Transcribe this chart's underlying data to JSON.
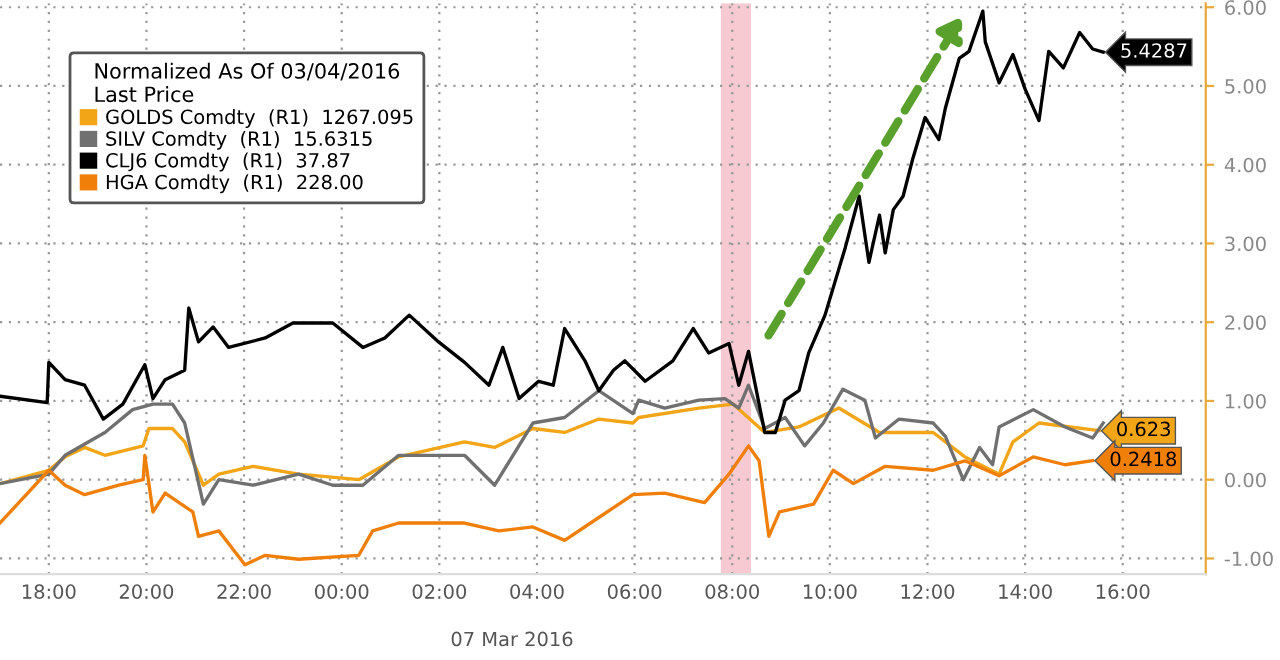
{
  "chart_data": {
    "type": "line",
    "legend_title": "Normalized As Of 03/04/2016\nLast Price",
    "annotations": [
      "07 Mar 2016"
    ],
    "xlim": [
      "2016-03-06T17:00",
      "2016-03-07T17:42"
    ],
    "xticks": [
      {
        "value": "2016-03-06T18:00",
        "label": "18:00"
      },
      {
        "value": "2016-03-06T20:00",
        "label": "20:00"
      },
      {
        "value": "2016-03-06T22:00",
        "label": "22:00"
      },
      {
        "value": "2016-03-07T00:00",
        "label": "00:00"
      },
      {
        "value": "2016-03-07T02:00",
        "label": "02:00"
      },
      {
        "value": "2016-03-07T04:00",
        "label": "04:00"
      },
      {
        "value": "2016-03-07T06:00",
        "label": "06:00"
      },
      {
        "value": "2016-03-07T08:00",
        "label": "08:00"
      },
      {
        "value": "2016-03-07T10:00",
        "label": "10:00"
      },
      {
        "value": "2016-03-07T12:00",
        "label": "12:00"
      },
      {
        "value": "2016-03-07T14:00",
        "label": "14:00"
      },
      {
        "value": "2016-03-07T16:00",
        "label": "16:00"
      }
    ],
    "ylim": [
      -1.2,
      6.05
    ],
    "yticks": [
      {
        "value": -1,
        "label": "-1.00"
      },
      {
        "value": 0,
        "label": "0.00"
      },
      {
        "value": 1,
        "label": "1.00"
      },
      {
        "value": 2,
        "label": "2.00"
      },
      {
        "value": 3,
        "label": "3.00"
      },
      {
        "value": 4,
        "label": "4.00"
      },
      {
        "value": 5,
        "label": "5.00"
      },
      {
        "value": 6,
        "label": "6.00"
      }
    ],
    "grid": true,
    "legend": "top left",
    "bands": [
      {
        "axis": "x",
        "from": "2016-03-07T07:46",
        "to": "2016-03-07T08:23",
        "color": "#f5c4cb"
      }
    ],
    "series": [
      {
        "name": "GOLDS Comdty  (R1)  1267.095",
        "color": "#f2a516",
        "x": [
          "2016-03-06T17:00",
          "2016-03-06T18:00",
          "2016-03-06T18:20",
          "2016-03-06T18:44",
          "2016-03-06T19:09",
          "2016-03-06T19:56",
          "2016-03-06T20:03",
          "2016-03-06T20:32",
          "2016-03-06T20:47",
          "2016-03-06T21:10",
          "2016-03-06T21:29",
          "2016-03-06T22:11",
          "2016-03-06T23:07",
          "2016-03-07T00:21",
          "2016-03-07T01:10",
          "2016-03-07T02:31",
          "2016-03-07T03:08",
          "2016-03-07T03:55",
          "2016-03-07T04:34",
          "2016-03-07T05:16",
          "2016-03-07T05:58",
          "2016-03-07T06:05",
          "2016-03-07T07:19",
          "2016-03-07T08:01",
          "2016-03-07T08:40",
          "2016-03-07T09:22",
          "2016-03-07T10:11",
          "2016-03-07T11:01",
          "2016-03-07T12:07",
          "2016-03-07T12:46",
          "2016-03-07T13:28",
          "2016-03-07T13:45",
          "2016-03-07T14:17",
          "2016-03-07T15:31"
        ],
        "values": [
          -0.05,
          0.12,
          0.29,
          0.41,
          0.31,
          0.43,
          0.65,
          0.65,
          0.48,
          -0.07,
          0.07,
          0.17,
          0.07,
          0.0,
          0.29,
          0.48,
          0.41,
          0.65,
          0.6,
          0.77,
          0.72,
          0.79,
          0.91,
          0.96,
          0.6,
          0.67,
          0.91,
          0.6,
          0.6,
          0.29,
          0.07,
          0.48,
          0.72,
          0.623
        ],
        "value_labels": [
          null,
          null,
          null,
          null,
          null,
          null,
          null,
          null,
          null,
          null,
          null,
          null,
          null,
          null,
          null,
          null,
          null,
          null,
          null,
          null,
          null,
          null,
          null,
          null,
          null,
          null,
          null,
          null,
          null,
          null,
          null,
          null,
          null,
          "0.623"
        ]
      },
      {
        "name": "SILV Comdty  (R1)  15.6315",
        "color": "#707070",
        "x": [
          "2016-03-06T17:00",
          "2016-03-06T18:00",
          "2016-03-06T18:20",
          "2016-03-06T19:09",
          "2016-03-06T19:43",
          "2016-03-06T20:08",
          "2016-03-06T20:32",
          "2016-03-06T20:47",
          "2016-03-06T21:10",
          "2016-03-06T21:29",
          "2016-03-06T22:11",
          "2016-03-06T23:07",
          "2016-03-06T23:49",
          "2016-03-07T00:26",
          "2016-03-07T01:10",
          "2016-03-07T01:42",
          "2016-03-07T02:31",
          "2016-03-07T03:08",
          "2016-03-07T03:55",
          "2016-03-07T04:34",
          "2016-03-07T05:16",
          "2016-03-07T05:58",
          "2016-03-07T06:05",
          "2016-03-07T06:37",
          "2016-03-07T07:19",
          "2016-03-07T07:51",
          "2016-03-07T08:08",
          "2016-03-07T08:20",
          "2016-03-07T08:40",
          "2016-03-07T09:05",
          "2016-03-07T09:29",
          "2016-03-07T09:52",
          "2016-03-07T10:16",
          "2016-03-07T10:43",
          "2016-03-07T10:56",
          "2016-03-07T11:25",
          "2016-03-07T12:07",
          "2016-03-07T12:22",
          "2016-03-07T12:44",
          "2016-03-07T13:04",
          "2016-03-07T13:20",
          "2016-03-07T13:28",
          "2016-03-07T14:10",
          "2016-03-07T14:49",
          "2016-03-07T15:23",
          "2016-03-07T15:36"
        ],
        "values": [
          -0.05,
          0.07,
          0.31,
          0.6,
          0.89,
          0.96,
          0.96,
          0.72,
          -0.31,
          0.0,
          -0.07,
          0.07,
          -0.07,
          -0.07,
          0.31,
          0.31,
          0.31,
          -0.07,
          0.72,
          0.79,
          1.13,
          0.84,
          1.01,
          0.91,
          1.01,
          1.03,
          0.91,
          1.2,
          0.65,
          0.79,
          0.43,
          0.72,
          1.15,
          1.01,
          0.53,
          0.77,
          0.72,
          0.55,
          0.0,
          0.41,
          0.19,
          0.67,
          0.89,
          0.67,
          0.53,
          0.72
        ]
      },
      {
        "name": "CLJ6 Comdty  (R1)  37.87",
        "color": "#000000",
        "x": [
          "2016-03-06T17:00",
          "2016-03-06T17:58",
          "2016-03-06T18:00",
          "2016-03-06T18:20",
          "2016-03-06T18:44",
          "2016-03-06T19:07",
          "2016-03-06T19:31",
          "2016-03-06T19:58",
          "2016-03-06T20:08",
          "2016-03-06T20:23",
          "2016-03-06T20:47",
          "2016-03-06T20:52",
          "2016-03-06T21:04",
          "2016-03-06T21:22",
          "2016-03-06T21:41",
          "2016-03-06T22:26",
          "2016-03-06T23:00",
          "2016-03-06T23:49",
          "2016-03-07T00:26",
          "2016-03-07T00:53",
          "2016-03-07T01:23",
          "2016-03-07T01:59",
          "2016-03-07T02:31",
          "2016-03-07T03:01",
          "2016-03-07T03:18",
          "2016-03-07T03:38",
          "2016-03-07T04:02",
          "2016-03-07T04:20",
          "2016-03-07T04:34",
          "2016-03-07T04:59",
          "2016-03-07T05:16",
          "2016-03-07T05:34",
          "2016-03-07T05:48",
          "2016-03-07T06:13",
          "2016-03-07T06:47",
          "2016-03-07T07:12",
          "2016-03-07T07:31",
          "2016-03-07T07:56",
          "2016-03-07T08:08",
          "2016-03-07T08:20",
          "2016-03-07T08:40",
          "2016-03-07T08:53",
          "2016-03-07T09:05",
          "2016-03-07T09:22",
          "2016-03-07T09:34",
          "2016-03-07T09:54",
          "2016-03-07T10:19",
          "2016-03-07T10:36",
          "2016-03-07T10:48",
          "2016-03-07T11:01",
          "2016-03-07T11:08",
          "2016-03-07T11:18",
          "2016-03-07T11:30",
          "2016-03-07T11:42",
          "2016-03-07T11:57",
          "2016-03-07T12:14",
          "2016-03-07T12:22",
          "2016-03-07T12:39",
          "2016-03-07T12:51",
          "2016-03-07T13:08",
          "2016-03-07T13:11",
          "2016-03-07T13:28",
          "2016-03-07T13:45",
          "2016-03-07T14:00",
          "2016-03-07T14:17",
          "2016-03-07T14:29",
          "2016-03-07T14:47",
          "2016-03-07T15:07",
          "2016-03-07T15:23",
          "2016-03-07T15:36"
        ],
        "values": [
          1.06,
          0.98,
          1.49,
          1.27,
          1.2,
          0.77,
          0.96,
          1.46,
          1.03,
          1.27,
          1.39,
          2.18,
          1.75,
          1.94,
          1.68,
          1.8,
          1.99,
          1.99,
          1.68,
          1.8,
          2.09,
          1.75,
          1.49,
          1.2,
          1.68,
          1.03,
          1.25,
          1.2,
          1.92,
          1.51,
          1.13,
          1.39,
          1.51,
          1.25,
          1.51,
          1.92,
          1.61,
          1.73,
          1.2,
          1.63,
          0.6,
          0.6,
          1.01,
          1.13,
          1.61,
          2.09,
          2.95,
          3.6,
          2.76,
          3.36,
          2.88,
          3.43,
          3.6,
          4.08,
          4.6,
          4.32,
          4.72,
          5.35,
          5.44,
          5.95,
          5.56,
          5.04,
          5.4,
          4.96,
          4.56,
          5.44,
          5.23,
          5.68,
          5.47,
          5.4287
        ],
        "value_labels": [
          null,
          null,
          null,
          null,
          null,
          null,
          null,
          null,
          null,
          null,
          null,
          null,
          null,
          null,
          null,
          null,
          null,
          null,
          null,
          null,
          null,
          null,
          null,
          null,
          null,
          null,
          null,
          null,
          null,
          null,
          null,
          null,
          null,
          null,
          null,
          null,
          null,
          null,
          null,
          null,
          null,
          null,
          null,
          null,
          null,
          null,
          null,
          null,
          null,
          null,
          null,
          null,
          null,
          null,
          null,
          null,
          null,
          null,
          null,
          null,
          null,
          null,
          null,
          null,
          null,
          null,
          null,
          null,
          null,
          "5.4287"
        ]
      },
      {
        "name": "HGA Comdty  (R1)  228.00",
        "color": "#f07f0a",
        "x": [
          "2016-03-06T17:00",
          "2016-03-06T18:00",
          "2016-03-06T18:20",
          "2016-03-06T18:44",
          "2016-03-06T19:26",
          "2016-03-06T19:56",
          "2016-03-06T19:58",
          "2016-03-06T20:08",
          "2016-03-06T20:23",
          "2016-03-06T20:57",
          "2016-03-06T21:04",
          "2016-03-06T21:29",
          "2016-03-06T22:01",
          "2016-03-06T22:26",
          "2016-03-06T23:07",
          "2016-03-07T00:21",
          "2016-03-07T00:38",
          "2016-03-07T01:10",
          "2016-03-07T02:31",
          "2016-03-07T03:13",
          "2016-03-07T03:55",
          "2016-03-07T04:34",
          "2016-03-07T05:16",
          "2016-03-07T05:58",
          "2016-03-07T06:37",
          "2016-03-07T07:26",
          "2016-03-07T07:56",
          "2016-03-07T08:20",
          "2016-03-07T08:33",
          "2016-03-07T08:45",
          "2016-03-07T08:58",
          "2016-03-07T09:40",
          "2016-03-07T10:04",
          "2016-03-07T10:29",
          "2016-03-07T11:08",
          "2016-03-07T12:07",
          "2016-03-07T12:46",
          "2016-03-07T13:28",
          "2016-03-07T14:10",
          "2016-03-07T14:49",
          "2016-03-07T15:23"
        ],
        "values": [
          -0.55,
          0.12,
          -0.07,
          -0.19,
          -0.07,
          0.0,
          0.31,
          -0.41,
          -0.17,
          -0.41,
          -0.72,
          -0.65,
          -1.08,
          -0.96,
          -1.01,
          -0.96,
          -0.65,
          -0.55,
          -0.55,
          -0.65,
          -0.6,
          -0.77,
          -0.48,
          -0.19,
          -0.17,
          -0.29,
          0.07,
          0.43,
          0.24,
          -0.72,
          -0.41,
          -0.31,
          0.12,
          -0.05,
          0.17,
          0.12,
          0.24,
          0.05,
          0.29,
          0.19,
          0.2418
        ],
        "value_labels": [
          null,
          null,
          null,
          null,
          null,
          null,
          null,
          null,
          null,
          null,
          null,
          null,
          null,
          null,
          null,
          null,
          null,
          null,
          null,
          null,
          null,
          null,
          null,
          null,
          null,
          null,
          null,
          null,
          null,
          null,
          null,
          null,
          null,
          null,
          null,
          null,
          null,
          null,
          null,
          null,
          "0.2418"
        ]
      }
    ]
  }
}
